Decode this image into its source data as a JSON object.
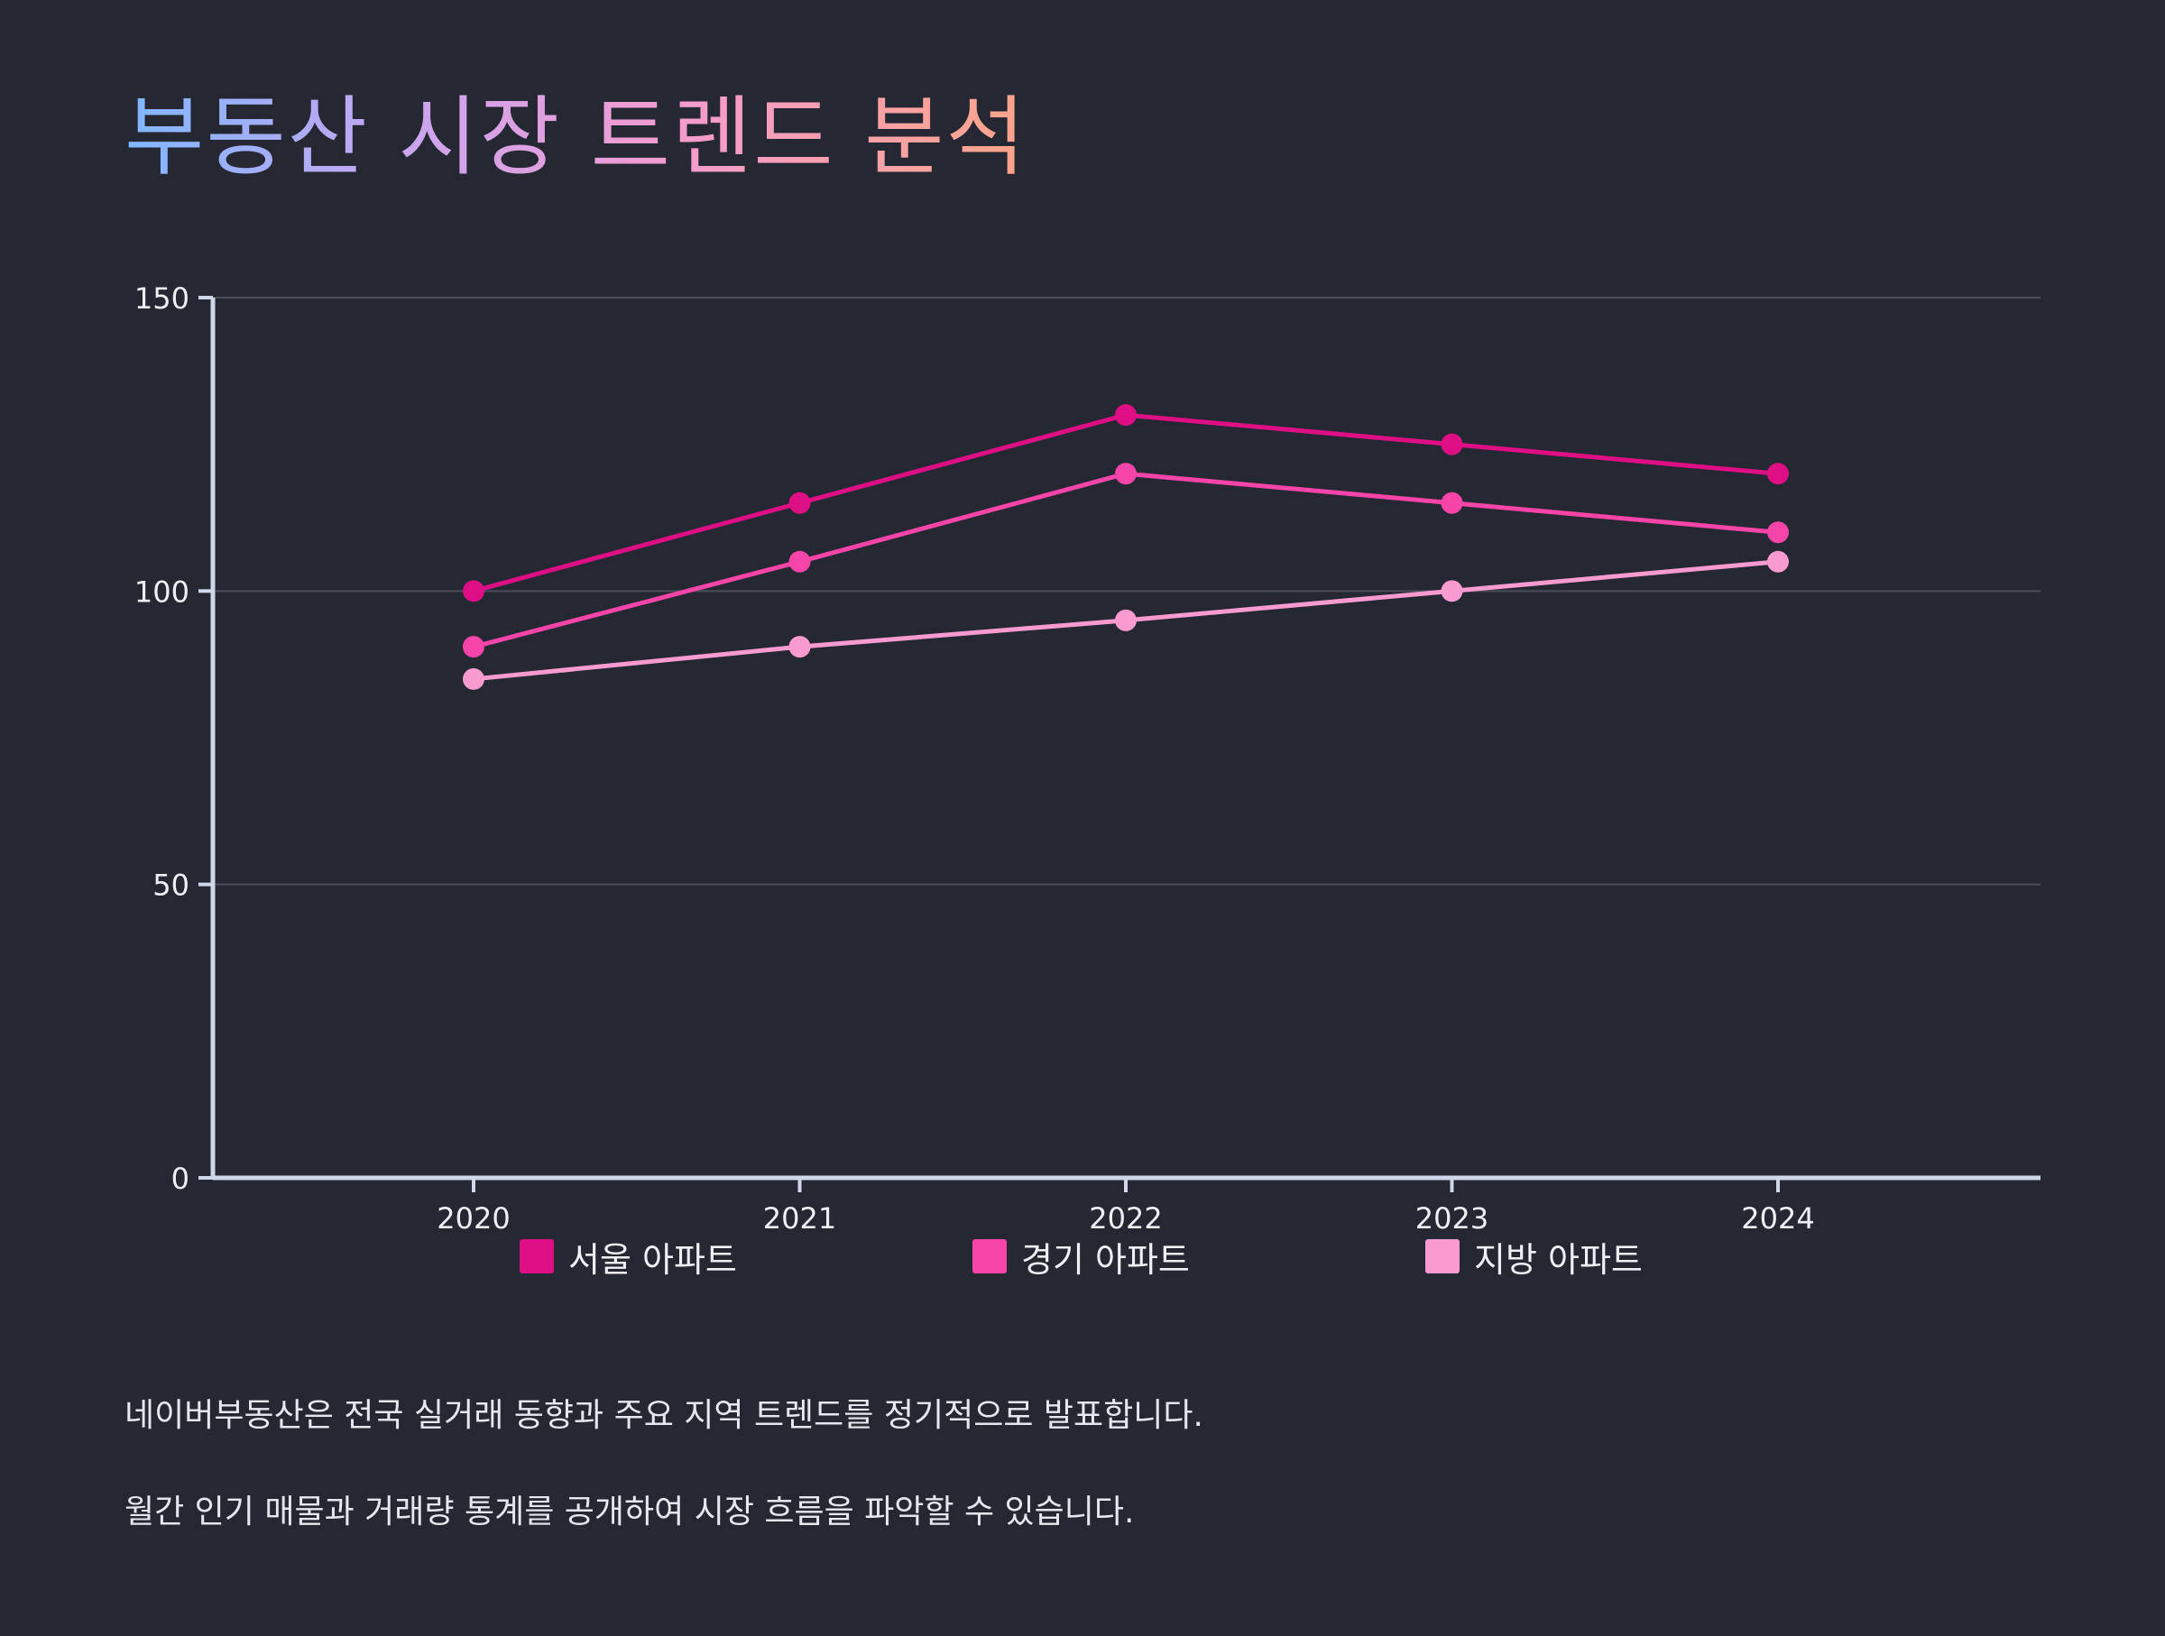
{
  "title": "부동산 시장 트렌드 분석",
  "chart_data": {
    "type": "line",
    "title": "부동산 시장 트렌드 분석",
    "xlabel": "",
    "ylabel": "",
    "categories": [
      "2020",
      "2021",
      "2022",
      "2023",
      "2024"
    ],
    "ylim": [
      0,
      150
    ],
    "yticks": [
      0,
      50,
      100,
      150
    ],
    "grid": true,
    "legend_position": "bottom",
    "series": [
      {
        "name": "서울 아파트",
        "values": [
          100,
          115,
          130,
          125,
          120
        ],
        "color": "#de0f85"
      },
      {
        "name": "경기 아파트",
        "values": [
          90.5,
          105,
          120,
          115,
          110
        ],
        "color": "#f644a8"
      },
      {
        "name": "지방 아파트",
        "values": [
          85,
          90.5,
          95,
          100,
          105
        ],
        "color": "#f99ad0"
      }
    ]
  },
  "description": [
    "네이버부동산은 전국 실거래 동향과 주요 지역 트렌드를 정기적으로 발표합니다.",
    "월간 인기 매물과 거래량 통계를 공개하여 시장 흐름을 파악할 수 있습니다."
  ],
  "colors": {
    "background": "#252733",
    "axis": "#cfd8ea",
    "grid": "#4a4d5a"
  }
}
